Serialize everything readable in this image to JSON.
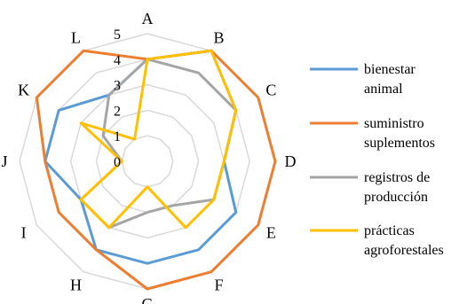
{
  "chart_data": {
    "type": "radar",
    "categories": [
      "A",
      "B",
      "C",
      "D",
      "E",
      "F",
      "G",
      "H",
      "I",
      "J",
      "K",
      "L"
    ],
    "rlim": [
      0,
      5
    ],
    "rticks": [
      0,
      1,
      2,
      3,
      4,
      5
    ],
    "rtick_labels": [
      "0",
      "1",
      "2",
      "3",
      "4",
      "5"
    ],
    "grid": true,
    "legend_position": "right",
    "series": [
      {
        "name": "bienestar animal",
        "color": "#5B9BD5",
        "values": [
          4,
          5,
          4,
          3,
          4,
          4,
          4,
          4,
          3,
          4,
          4,
          3
        ]
      },
      {
        "name": "suministro suplementos",
        "color": "#ED7D31",
        "values": [
          4,
          5,
          5,
          5,
          5,
          5,
          5,
          4,
          4,
          4,
          5,
          5
        ]
      },
      {
        "name": "registros de producción",
        "color": "#A5A5A5",
        "values": [
          4,
          4,
          4,
          3,
          3,
          2,
          2,
          3,
          3,
          1,
          2,
          3
        ]
      },
      {
        "name": "prácticas agroforestales",
        "color": "#FFC000",
        "values": [
          4,
          5,
          4,
          3,
          3,
          3,
          1,
          3,
          3,
          1,
          3,
          1
        ]
      }
    ]
  }
}
